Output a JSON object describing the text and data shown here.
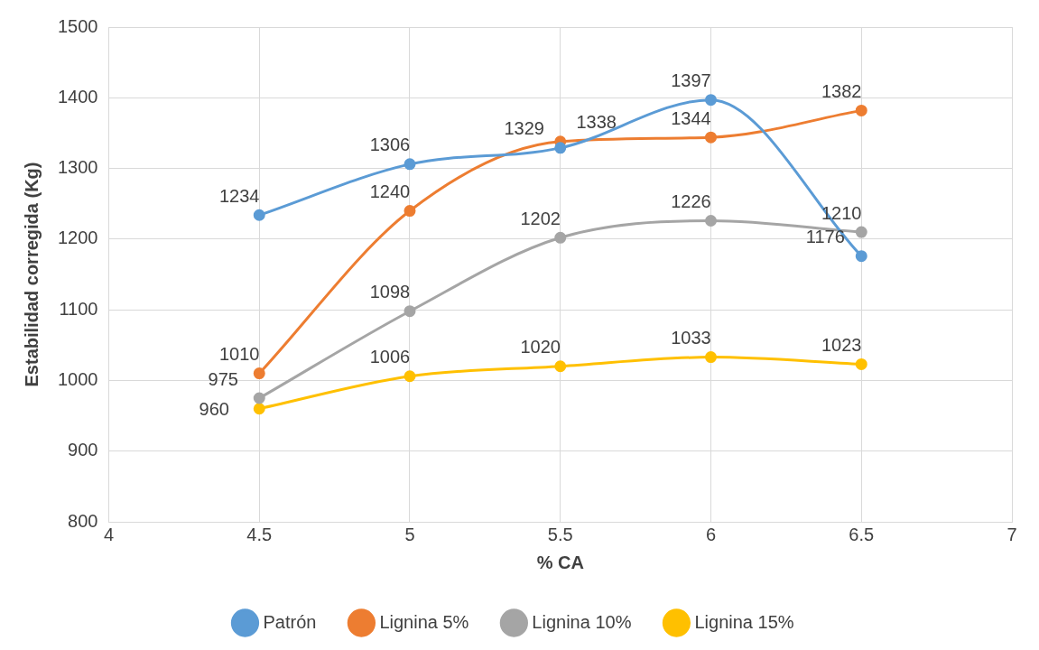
{
  "chart_data": {
    "type": "line",
    "xlabel": "% CA",
    "ylabel": "Estabilidad corregida (Kg)",
    "x": [
      4.5,
      5,
      5.5,
      6,
      6.5
    ],
    "series": [
      {
        "name": "Patrón",
        "color": "#5b9bd5",
        "values": [
          1234,
          1306,
          1329,
          1397,
          1176
        ]
      },
      {
        "name": "Lignina 5%",
        "color": "#ed7d31",
        "values": [
          1010,
          1240,
          1338,
          1344,
          1382
        ]
      },
      {
        "name": "Lignina 10%",
        "color": "#a5a5a5",
        "values": [
          975,
          1098,
          1202,
          1226,
          1210
        ]
      },
      {
        "name": "Lignina 15%",
        "color": "#ffc000",
        "values": [
          960,
          1006,
          1020,
          1033,
          1023
        ]
      }
    ],
    "xlim": [
      4,
      7
    ],
    "xticks": [
      4,
      4.5,
      5,
      5.5,
      6,
      6.5,
      7
    ],
    "ylim": [
      800,
      1500
    ],
    "yticks": [
      800,
      900,
      1000,
      1100,
      1200,
      1300,
      1400,
      1500
    ],
    "grid": true,
    "legend": "bottom",
    "marker": "circle",
    "line_style": "solid",
    "data_labels": true
  }
}
